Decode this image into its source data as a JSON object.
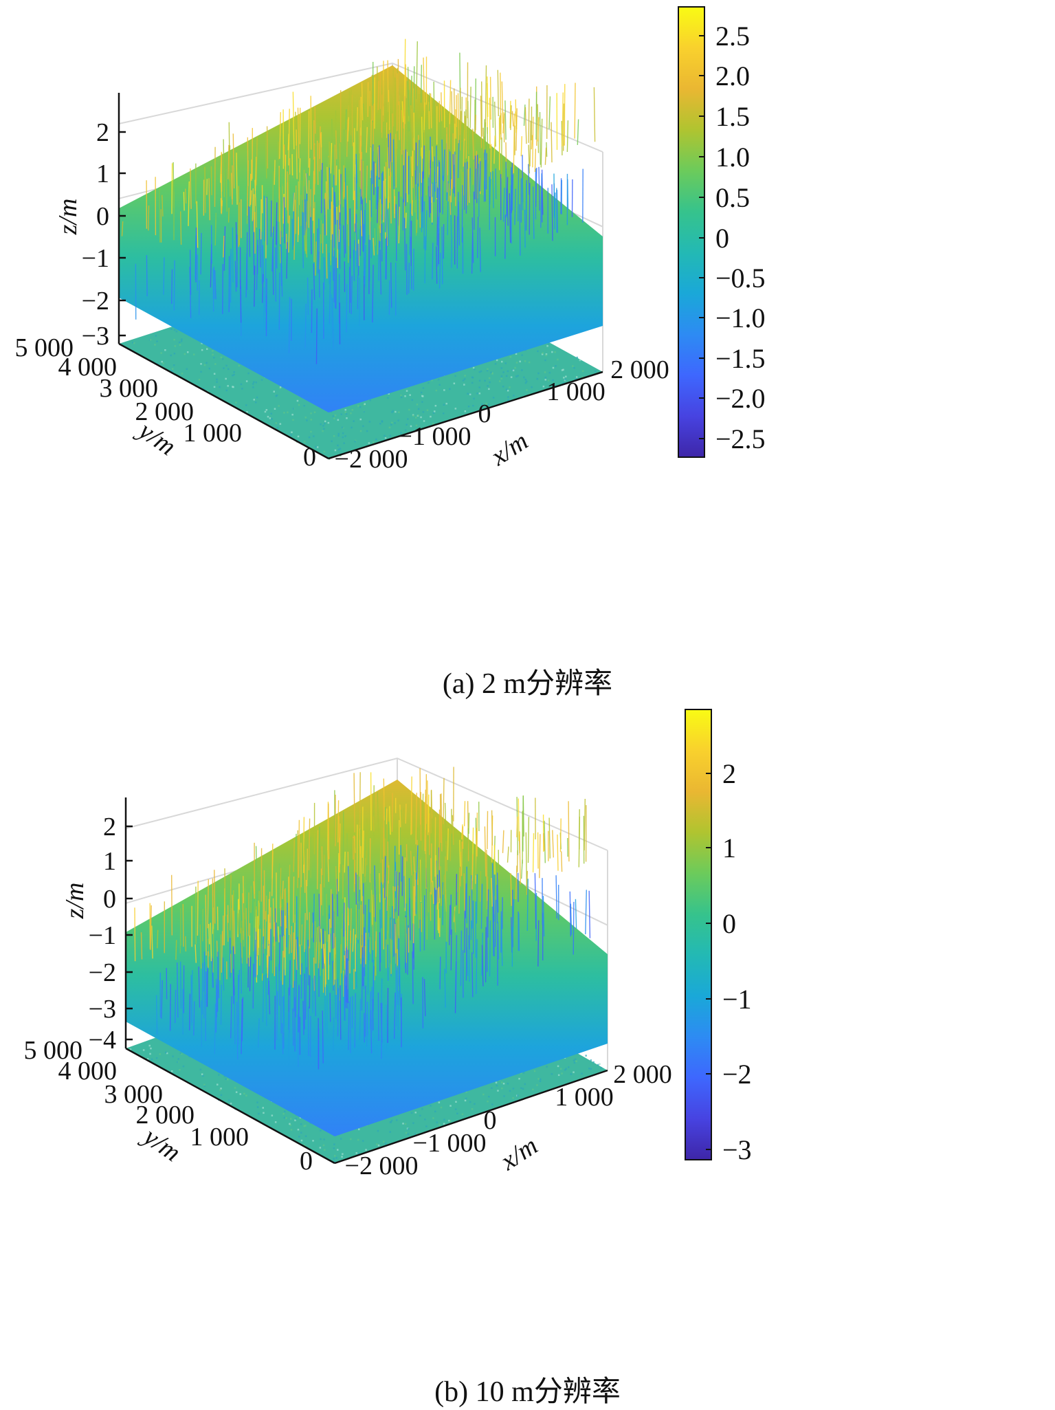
{
  "chart_data": [
    {
      "type": "surface",
      "caption": "(a) 2 m分辨率",
      "xlabel": "x/m",
      "ylabel": "y/m",
      "zlabel": "z/m",
      "x_range": [
        -2000,
        2000
      ],
      "y_range": [
        0,
        5000
      ],
      "z_range": [
        -3,
        2.8
      ],
      "x_ticks": [
        "−2 000",
        "−1 000",
        "0",
        "1 000",
        "2 000"
      ],
      "y_ticks": [
        "0",
        "1 000",
        "2 000",
        "3 000",
        "4 000",
        "5 000"
      ],
      "z_ticks": [
        "−3",
        "−2",
        "−1",
        "0",
        "1",
        "2"
      ],
      "colorbar_range": [
        -2.7,
        2.85
      ],
      "colorbar_ticks": [
        "2.5",
        "2.0",
        "1.5",
        "1.0",
        "0.5",
        "0",
        "−0.5",
        "−1.0",
        "−1.5",
        "−2.0",
        "−2.5"
      ],
      "colormap": "parula",
      "grid": true
    },
    {
      "type": "surface",
      "caption": "(b) 10 m分辨率",
      "xlabel": "x/m",
      "ylabel": "y/m",
      "zlabel": "z/m",
      "x_range": [
        -2000,
        2000
      ],
      "y_range": [
        0,
        5000
      ],
      "z_range": [
        -4,
        2.8
      ],
      "x_ticks": [
        "−2 000",
        "−1 000",
        "0",
        "1 000",
        "2 000"
      ],
      "y_ticks": [
        "0",
        "1 000",
        "2 000",
        "3 000",
        "4 000",
        "5 000"
      ],
      "z_ticks": [
        "−4",
        "−3",
        "−2",
        "−1",
        "0",
        "1",
        "2"
      ],
      "colorbar_range": [
        -3.3,
        2.8
      ],
      "colorbar_ticks": [
        "2",
        "1",
        "0",
        "−1",
        "−2",
        "−3"
      ],
      "colormap": "parula",
      "grid": true
    }
  ],
  "colors": {
    "parula": [
      "#3e26a8",
      "#4743e1",
      "#3e67fe",
      "#2d8bf3",
      "#1aa8d8",
      "#23b9b4",
      "#36c38c",
      "#6ccb5b",
      "#b0c430",
      "#eab732",
      "#f9d12d",
      "#f9fb14"
    ],
    "floor": "#3fb8a0",
    "grid": "#d8d8d8"
  }
}
